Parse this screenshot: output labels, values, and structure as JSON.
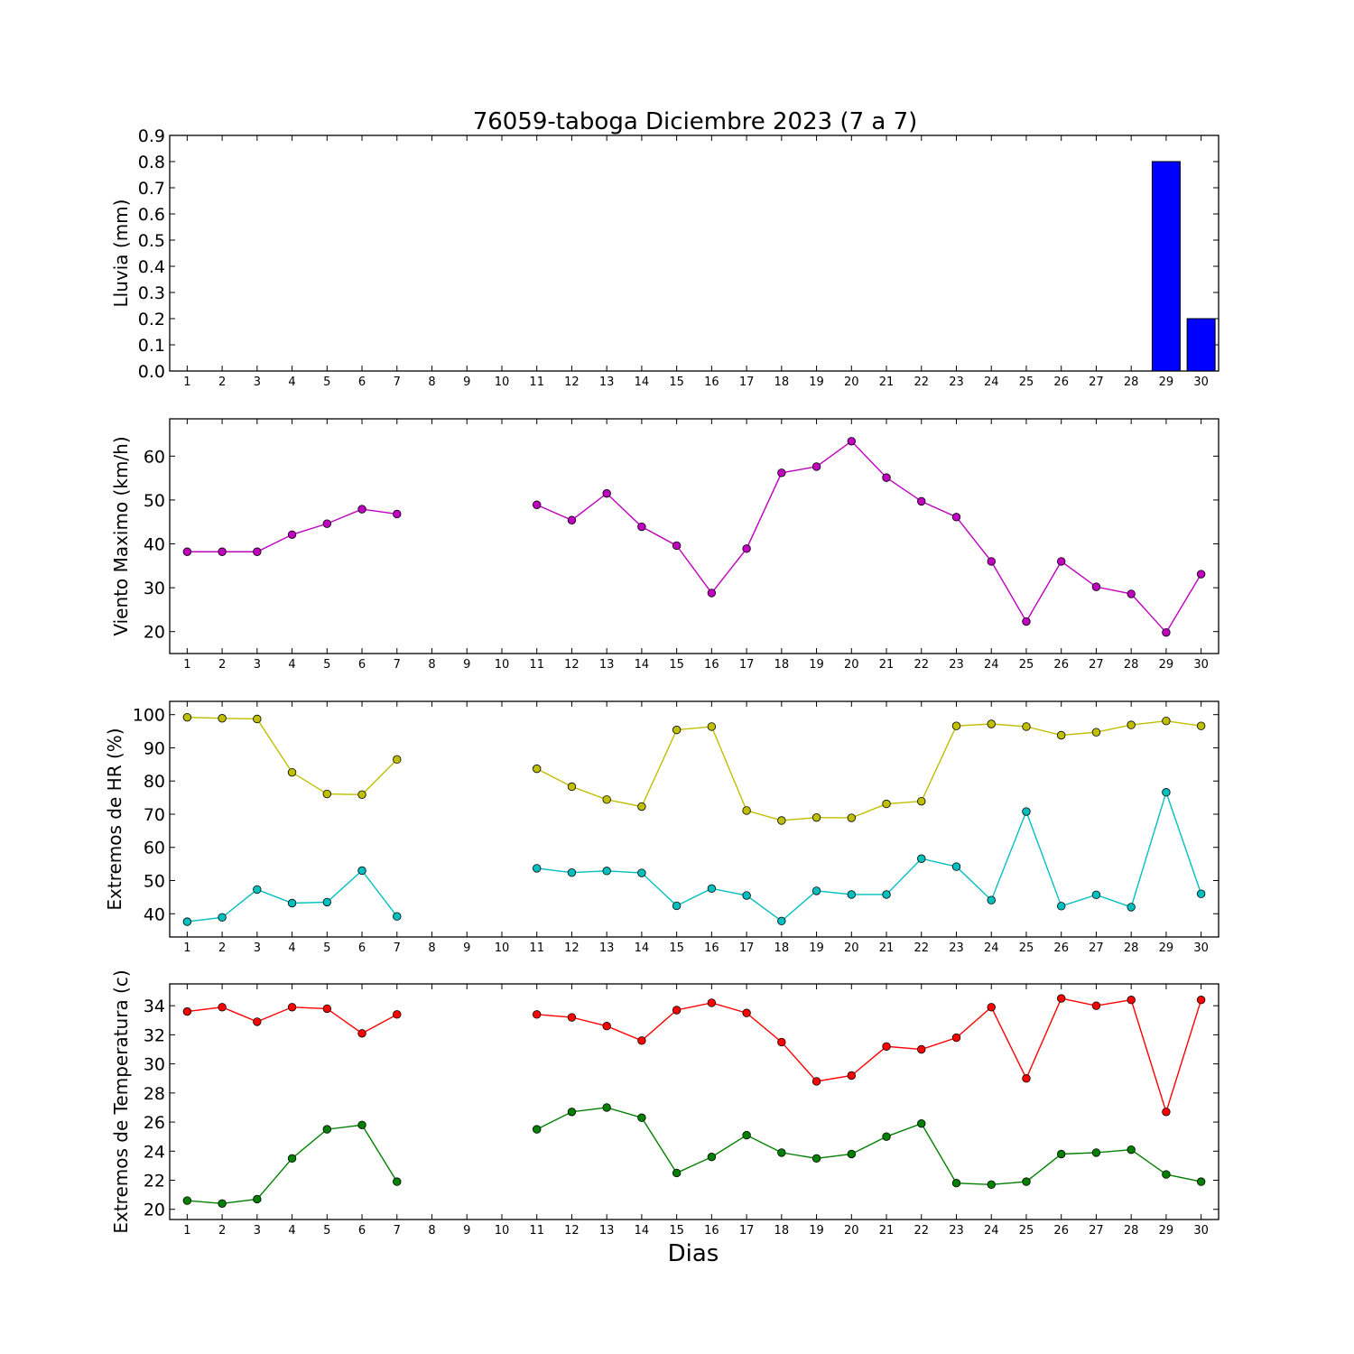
{
  "title": "76059-taboga Diciembre 2023  (7 a 7)",
  "xlabel": "Dias",
  "colors": {
    "bar": "#0000ff",
    "wind": "#bf00bf",
    "hr_max": "#bfbf00",
    "hr_min": "#00bfbf",
    "temp_max": "#ff0000",
    "temp_min": "#008000"
  },
  "chart_data": [
    {
      "type": "bar",
      "ylabel": "Lluvia (mm)",
      "x": [
        1,
        2,
        3,
        4,
        5,
        6,
        7,
        8,
        9,
        10,
        11,
        12,
        13,
        14,
        15,
        16,
        17,
        18,
        19,
        20,
        21,
        22,
        23,
        24,
        25,
        26,
        27,
        28,
        29,
        30
      ],
      "ylim": [
        0,
        0.9
      ],
      "yticks": [
        0.0,
        0.1,
        0.2,
        0.3,
        0.4,
        0.5,
        0.6,
        0.7,
        0.8,
        0.9
      ],
      "ytick_labels": [
        "0.0",
        "0.1",
        "0.2",
        "0.3",
        "0.4",
        "0.5",
        "0.6",
        "0.7",
        "0.8",
        "0.9"
      ],
      "series": [
        {
          "values": [
            0,
            0,
            0,
            0,
            0,
            0,
            0,
            null,
            null,
            null,
            0,
            0,
            0,
            0,
            0,
            0,
            0,
            0,
            0,
            0,
            0,
            0,
            0,
            0,
            0,
            0,
            0,
            0,
            0.8,
            0.2
          ]
        }
      ]
    },
    {
      "type": "line",
      "ylabel": "Viento Maximo (km/h)",
      "x": [
        1,
        2,
        3,
        4,
        5,
        6,
        7,
        8,
        9,
        10,
        11,
        12,
        13,
        14,
        15,
        16,
        17,
        18,
        19,
        20,
        21,
        22,
        23,
        24,
        25,
        26,
        27,
        28,
        29,
        30
      ],
      "ylim": [
        15,
        68.5
      ],
      "yticks": [
        20,
        30,
        40,
        50,
        60
      ],
      "ytick_labels": [
        "20",
        "30",
        "40",
        "50",
        "60"
      ],
      "series": [
        {
          "values": [
            38.2,
            38.2,
            38.2,
            42.1,
            44.6,
            47.9,
            46.8,
            null,
            null,
            null,
            48.9,
            45.4,
            51.5,
            43.9,
            39.6,
            28.8,
            38.9,
            56.2,
            57.6,
            63.4,
            55.1,
            49.7,
            46.1,
            36.0,
            22.3,
            36.0,
            30.2,
            28.6,
            19.8,
            33.1
          ]
        }
      ]
    },
    {
      "type": "line",
      "ylabel": "Extremos de HR (%)",
      "x": [
        1,
        2,
        3,
        4,
        5,
        6,
        7,
        8,
        9,
        10,
        11,
        12,
        13,
        14,
        15,
        16,
        17,
        18,
        19,
        20,
        21,
        22,
        23,
        24,
        25,
        26,
        27,
        28,
        29,
        30
      ],
      "ylim": [
        33,
        104
      ],
      "yticks": [
        40,
        50,
        60,
        70,
        80,
        90,
        100
      ],
      "ytick_labels": [
        "40",
        "50",
        "60",
        "70",
        "80",
        "90",
        "100"
      ],
      "series": [
        {
          "values": [
            99.2,
            98.9,
            98.7,
            82.6,
            76.1,
            75.9,
            86.5,
            null,
            null,
            null,
            83.7,
            78.3,
            74.4,
            72.3,
            95.4,
            96.4,
            71.1,
            68.1,
            69.0,
            68.9,
            73.1,
            73.9,
            96.6,
            97.2,
            96.4,
            93.8,
            94.7,
            96.9,
            98.1,
            96.6
          ]
        },
        {
          "values": [
            37.6,
            38.9,
            47.3,
            43.2,
            43.5,
            53.0,
            39.2,
            null,
            null,
            null,
            53.7,
            52.4,
            52.9,
            52.3,
            42.4,
            47.6,
            45.5,
            37.8,
            46.9,
            45.8,
            45.8,
            56.6,
            54.2,
            44.1,
            70.8,
            42.3,
            45.7,
            42.0,
            76.6,
            46.0
          ]
        }
      ]
    },
    {
      "type": "line",
      "ylabel": "Extremos de Temperatura (c)",
      "x": [
        1,
        2,
        3,
        4,
        5,
        6,
        7,
        8,
        9,
        10,
        11,
        12,
        13,
        14,
        15,
        16,
        17,
        18,
        19,
        20,
        21,
        22,
        23,
        24,
        25,
        26,
        27,
        28,
        29,
        30
      ],
      "ylim": [
        19.3,
        35.5
      ],
      "yticks": [
        20,
        22,
        24,
        26,
        28,
        30,
        32,
        34
      ],
      "ytick_labels": [
        "20",
        "22",
        "24",
        "26",
        "28",
        "30",
        "32",
        "34"
      ],
      "series": [
        {
          "values": [
            33.6,
            33.9,
            32.9,
            33.9,
            33.8,
            32.1,
            33.4,
            null,
            null,
            null,
            33.4,
            33.2,
            32.6,
            31.6,
            33.7,
            34.2,
            33.5,
            31.5,
            28.8,
            29.2,
            31.2,
            31.0,
            31.8,
            33.9,
            29.0,
            34.5,
            34.0,
            34.4,
            26.7,
            34.4
          ]
        },
        {
          "values": [
            20.6,
            20.4,
            20.7,
            23.5,
            25.5,
            25.8,
            21.9,
            null,
            null,
            null,
            25.5,
            26.7,
            27.0,
            26.3,
            22.5,
            23.6,
            25.1,
            23.9,
            23.5,
            23.8,
            25.0,
            25.9,
            21.8,
            21.7,
            21.9,
            23.8,
            23.9,
            24.1,
            22.4,
            21.9
          ]
        }
      ]
    }
  ]
}
